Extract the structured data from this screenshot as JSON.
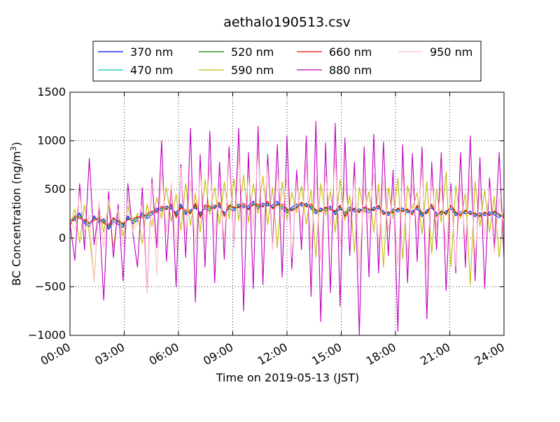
{
  "chart_data": {
    "type": "line",
    "title": "aethalo190513.csv",
    "xlabel": "Time on 2019-05-13 (JST)",
    "ylabel_main": "BC Concentration (ng/m",
    "ylabel_sup": "3",
    "ylabel_close": ")",
    "x_domain_hours": [
      0,
      24
    ],
    "x_ticks_hours": [
      0,
      3,
      6,
      9,
      12,
      15,
      18,
      21,
      24
    ],
    "x_tick_labels": [
      "00:00",
      "03:00",
      "06:00",
      "09:00",
      "12:00",
      "15:00",
      "18:00",
      "21:00",
      "24:00"
    ],
    "ylim": [
      -1000,
      1500
    ],
    "y_ticks": [
      -1000,
      -500,
      0,
      500,
      1000,
      1500
    ],
    "y_tick_labels": [
      "−1000",
      "−500",
      "0",
      "500",
      "1000",
      "1500"
    ],
    "grid": true,
    "legend_placement": "top-center",
    "series": [
      {
        "name": "370 nm",
        "color": "#0000ff",
        "values": [
          190,
          180,
          260,
          150,
          120,
          230,
          160,
          200,
          90,
          170,
          140,
          110,
          230,
          150,
          180,
          260,
          200,
          240,
          310,
          280,
          330,
          300,
          260,
          350,
          240,
          290,
          310,
          260,
          300,
          280,
          340,
          320,
          260,
          300,
          280,
          350,
          310,
          330,
          380,
          300,
          360,
          330,
          340,
          380,
          300,
          260,
          320,
          350,
          330,
          360,
          300,
          250,
          310,
          280,
          330,
          240,
          300,
          260,
          320,
          270,
          300,
          280,
          260,
          320,
          300,
          280,
          230,
          300,
          270,
          310,
          260,
          280,
          300,
          220,
          290,
          310,
          260,
          240,
          280,
          300,
          230,
          270,
          250,
          280,
          220,
          260,
          230,
          270,
          240,
          210,
          250
        ]
      },
      {
        "name": "470 nm",
        "color": "#00bfbf",
        "values": [
          170,
          200,
          240,
          170,
          140,
          210,
          180,
          180,
          110,
          190,
          160,
          130,
          210,
          170,
          200,
          240,
          220,
          260,
          290,
          300,
          310,
          320,
          240,
          330,
          260,
          270,
          330,
          240,
          320,
          300,
          320,
          340,
          240,
          320,
          300,
          330,
          330,
          310,
          360,
          320,
          340,
          350,
          320,
          360,
          320,
          280,
          300,
          330,
          350,
          340,
          320,
          270,
          290,
          300,
          310,
          260,
          320,
          240,
          300,
          290,
          280,
          300,
          280,
          300,
          320,
          260,
          250,
          280,
          290,
          290,
          280,
          260,
          320,
          240,
          270,
          330,
          240,
          260,
          260,
          320,
          250,
          250,
          270,
          260,
          240,
          240,
          250,
          250,
          260,
          230,
          230
        ]
      },
      {
        "name": "520 nm",
        "color": "#008000",
        "values": [
          160,
          210,
          220,
          180,
          150,
          200,
          190,
          170,
          120,
          200,
          170,
          140,
          200,
          180,
          210,
          230,
          230,
          270,
          280,
          310,
          300,
          330,
          230,
          320,
          270,
          260,
          340,
          230,
          330,
          310,
          310,
          350,
          230,
          330,
          310,
          320,
          340,
          300,
          350,
          330,
          330,
          360,
          310,
          350,
          330,
          290,
          290,
          320,
          360,
          330,
          330,
          280,
          280,
          310,
          300,
          270,
          330,
          230,
          290,
          300,
          270,
          310,
          290,
          290,
          330,
          250,
          260,
          270,
          300,
          280,
          290,
          250,
          330,
          250,
          260,
          340,
          230,
          270,
          250,
          330,
          260,
          240,
          280,
          250,
          250,
          230,
          260,
          240,
          270,
          240,
          220
        ]
      },
      {
        "name": "590 nm",
        "color": "#bfbf00",
        "values": [
          120,
          300,
          -50,
          340,
          40,
          -420,
          320,
          60,
          350,
          -100,
          280,
          20,
          330,
          100,
          260,
          -60,
          350,
          120,
          420,
          200,
          520,
          170,
          450,
          80,
          560,
          130,
          460,
          60,
          600,
          240,
          520,
          140,
          580,
          200,
          610,
          180,
          650,
          160,
          560,
          250,
          640,
          140,
          520,
          -100,
          580,
          190,
          470,
          260,
          540,
          140,
          500,
          -200,
          560,
          230,
          480,
          60,
          600,
          180,
          440,
          -140,
          520,
          260,
          480,
          60,
          560,
          -300,
          520,
          200,
          620,
          -220,
          540,
          300,
          470,
          40,
          580,
          -160,
          500,
          160,
          680,
          -300,
          540,
          200,
          460,
          -480,
          580,
          120,
          490,
          60,
          430,
          -200,
          320
        ]
      },
      {
        "name": "660 nm",
        "color": "#ff0000",
        "values": [
          130,
          230,
          200,
          190,
          160,
          180,
          210,
          150,
          140,
          210,
          180,
          150,
          190,
          200,
          220,
          210,
          250,
          280,
          260,
          330,
          290,
          350,
          210,
          310,
          290,
          250,
          360,
          210,
          340,
          330,
          300,
          370,
          220,
          340,
          320,
          310,
          360,
          290,
          340,
          350,
          320,
          380,
          300,
          340,
          350,
          300,
          280,
          310,
          370,
          320,
          350,
          290,
          270,
          320,
          290,
          280,
          340,
          220,
          280,
          310,
          260,
          320,
          300,
          280,
          340,
          240,
          270,
          260,
          310,
          270,
          300,
          240,
          340,
          260,
          250,
          350,
          220,
          280,
          240,
          340,
          270,
          230,
          290,
          240,
          260,
          220,
          270,
          230,
          280,
          250,
          210
        ]
      },
      {
        "name": "880 nm",
        "color": "#bf00bf",
        "values": [
          150,
          -230,
          560,
          -120,
          820,
          -70,
          300,
          -640,
          480,
          -200,
          350,
          -440,
          560,
          60,
          -300,
          520,
          -560,
          620,
          -100,
          1000,
          -240,
          560,
          -500,
          760,
          -200,
          1130,
          -660,
          860,
          -300,
          1100,
          -460,
          780,
          -220,
          940,
          -100,
          1130,
          -750,
          880,
          -520,
          1150,
          -480,
          860,
          -100,
          960,
          -400,
          1050,
          -320,
          700,
          -120,
          1050,
          -600,
          1200,
          -860,
          980,
          -560,
          1180,
          -700,
          1030,
          -180,
          780,
          -1000,
          940,
          -400,
          1070,
          -360,
          990,
          -180,
          700,
          -960,
          960,
          -460,
          870,
          -240,
          940,
          -830,
          780,
          -120,
          880,
          -540,
          560,
          -360,
          880,
          -300,
          1050,
          -440,
          830,
          -520,
          620,
          -100,
          880,
          -200
        ]
      },
      {
        "name": "950 nm",
        "color": "#ffc0cb",
        "values": [
          200,
          80,
          460,
          60,
          240,
          -460,
          380,
          -100,
          400,
          120,
          300,
          -80,
          420,
          60,
          160,
          360,
          -560,
          560,
          -380,
          700,
          60,
          560,
          -120,
          720,
          40,
          600,
          -80,
          680,
          160,
          760,
          20,
          560,
          -40,
          820,
          -100,
          860,
          80,
          640,
          120,
          880,
          60,
          740,
          -120,
          700,
          200,
          640,
          -200,
          580,
          100,
          760,
          -120,
          640,
          -240,
          680,
          120,
          820,
          -80,
          560,
          160,
          620,
          -320,
          520,
          180,
          660,
          -100,
          600,
          60,
          480,
          -280,
          680,
          -200,
          560,
          80,
          720,
          -320,
          600,
          100,
          540,
          -120,
          480,
          -300,
          560,
          -60,
          640,
          -200,
          480,
          20,
          520,
          -160,
          420,
          100
        ]
      }
    ]
  }
}
